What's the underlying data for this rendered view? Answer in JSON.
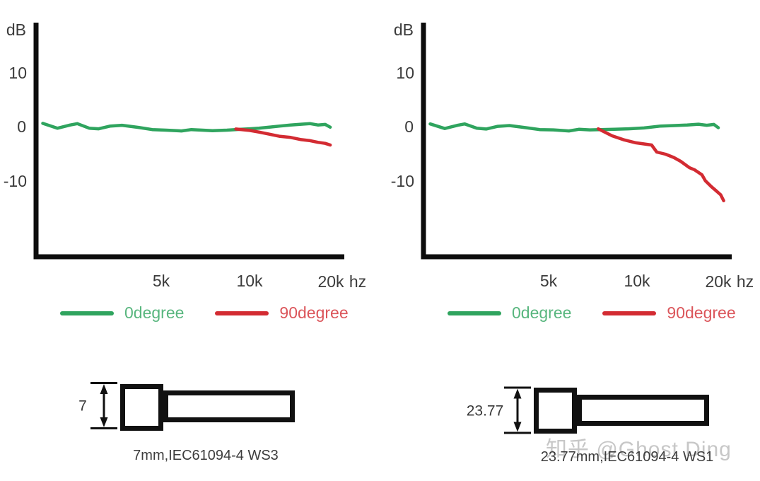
{
  "colors": {
    "green_line": "#2fa45e",
    "red_line": "#d32b32",
    "axis": "#0d0d0d",
    "label_text": "#3b3b3b",
    "watermark": "#c7c7c7"
  },
  "charts": [
    {
      "y_axis_title": "dB",
      "x_axis_title": "hz",
      "y_ticks": [
        "10",
        "0",
        "-10"
      ],
      "x_ticks": [
        "5k",
        "10k",
        "20k"
      ],
      "legend": [
        {
          "label": "0degree",
          "color": "#2fa45e"
        },
        {
          "label": "90degree",
          "color": "#d32b32"
        }
      ],
      "chart_data": {
        "type": "line",
        "title": "",
        "xlabel": "hz",
        "ylabel": "dB",
        "x_unit": "kHz",
        "x_scale": "log",
        "x_tick_values": [
          5,
          10,
          20
        ],
        "y_tick_values": [
          10,
          0,
          -10
        ],
        "ylim": [
          -20,
          15
        ],
        "legend_position": "bottom",
        "grid": false,
        "series": [
          {
            "name": "0degree",
            "color": "#2fa45e",
            "points": [
              [
                1.9,
                0.6
              ],
              [
                2.14,
                -0.3
              ],
              [
                2.38,
                0.3
              ],
              [
                2.52,
                0.55
              ],
              [
                2.78,
                -0.3
              ],
              [
                3.0,
                -0.4
              ],
              [
                3.3,
                0.1
              ],
              [
                3.63,
                0.25
              ],
              [
                4.15,
                -0.15
              ],
              [
                4.65,
                -0.55
              ],
              [
                5.2,
                -0.65
              ],
              [
                5.9,
                -0.8
              ],
              [
                6.4,
                -0.55
              ],
              [
                7.0,
                -0.65
              ],
              [
                7.6,
                -0.75
              ],
              [
                8.55,
                -0.65
              ],
              [
                9.6,
                -0.5
              ],
              [
                10.3,
                -0.4
              ],
              [
                11.1,
                -0.3
              ],
              [
                12.1,
                -0.1
              ],
              [
                13.2,
                0.1
              ],
              [
                14.4,
                0.3
              ],
              [
                15.7,
                0.45
              ],
              [
                16.9,
                0.55
              ],
              [
                18.0,
                0.3
              ],
              [
                19.1,
                0.4
              ],
              [
                19.9,
                -0.1
              ]
            ]
          },
          {
            "name": "90degree",
            "color": "#d32b32",
            "points": [
              [
                9.2,
                -0.45
              ],
              [
                10.3,
                -0.7
              ],
              [
                11.1,
                -1.0
              ],
              [
                12.1,
                -1.4
              ],
              [
                13.2,
                -1.8
              ],
              [
                14.4,
                -2.0
              ],
              [
                15.7,
                -2.4
              ],
              [
                16.9,
                -2.6
              ],
              [
                18.0,
                -2.9
              ],
              [
                19.1,
                -3.1
              ],
              [
                19.9,
                -3.4
              ]
            ]
          }
        ]
      }
    },
    {
      "y_axis_title": "dB",
      "x_axis_title": "hz",
      "y_ticks": [
        "10",
        "0",
        "-10"
      ],
      "x_ticks": [
        "5k",
        "10k",
        "20k"
      ],
      "legend": [
        {
          "label": "0degree",
          "color": "#2fa45e"
        },
        {
          "label": "90degree",
          "color": "#d32b32"
        }
      ],
      "chart_data": {
        "type": "line",
        "title": "",
        "xlabel": "hz",
        "ylabel": "dB",
        "x_unit": "kHz",
        "x_scale": "log",
        "x_tick_values": [
          5,
          10,
          20
        ],
        "y_tick_values": [
          10,
          0,
          -10
        ],
        "ylim": [
          -20,
          15
        ],
        "legend_position": "bottom",
        "grid": false,
        "series": [
          {
            "name": "0degree",
            "color": "#2fa45e",
            "points": [
              [
                1.9,
                0.5
              ],
              [
                2.14,
                -0.35
              ],
              [
                2.38,
                0.25
              ],
              [
                2.52,
                0.5
              ],
              [
                2.78,
                -0.3
              ],
              [
                3.0,
                -0.45
              ],
              [
                3.3,
                0.05
              ],
              [
                3.63,
                0.2
              ],
              [
                4.15,
                -0.2
              ],
              [
                4.65,
                -0.55
              ],
              [
                5.2,
                -0.6
              ],
              [
                5.9,
                -0.8
              ],
              [
                6.4,
                -0.5
              ],
              [
                7.0,
                -0.6
              ],
              [
                7.6,
                -0.55
              ],
              [
                8.55,
                -0.5
              ],
              [
                9.6,
                -0.4
              ],
              [
                10.9,
                -0.25
              ],
              [
                12.5,
                0.1
              ],
              [
                14.0,
                0.2
              ],
              [
                15.5,
                0.3
              ],
              [
                17.0,
                0.45
              ],
              [
                18.2,
                0.25
              ],
              [
                19.3,
                0.4
              ],
              [
                20.0,
                -0.2
              ]
            ]
          },
          {
            "name": "90degree",
            "color": "#d32b32",
            "points": [
              [
                7.5,
                -0.4
              ],
              [
                8.4,
                -1.7
              ],
              [
                9.2,
                -2.4
              ],
              [
                10.2,
                -3.0
              ],
              [
                11.6,
                -3.4
              ],
              [
                12.1,
                -4.7
              ],
              [
                13.0,
                -5.1
              ],
              [
                13.9,
                -5.7
              ],
              [
                14.7,
                -6.4
              ],
              [
                15.8,
                -7.6
              ],
              [
                16.5,
                -8.0
              ],
              [
                17.5,
                -8.9
              ],
              [
                18.0,
                -10.0
              ],
              [
                18.9,
                -11.1
              ],
              [
                19.5,
                -11.7
              ],
              [
                20.4,
                -12.6
              ],
              [
                20.9,
                -13.7
              ]
            ]
          }
        ]
      }
    }
  ],
  "mic_diagrams": [
    {
      "dimension_label": "7",
      "caption": "7mm,IEC61094-4 WS3"
    },
    {
      "dimension_label": "23.77",
      "caption": "23.77mm,IEC61094-4 WS1"
    }
  ],
  "watermark": "知乎 @Ghost Ding"
}
